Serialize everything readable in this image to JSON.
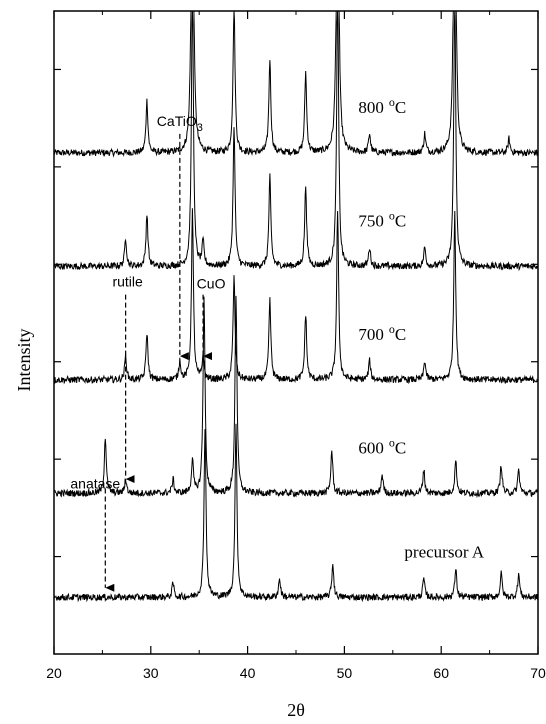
{
  "chart_data": {
    "type": "line",
    "xlabel": "2θ",
    "ylabel": "Intensity",
    "xlim": [
      20,
      70
    ],
    "xticks": [
      "20",
      "30",
      "40",
      "50",
      "60",
      "70"
    ],
    "series": [
      {
        "name": "800",
        "label_sup": "o",
        "label_unit": "C",
        "baseline": 5.3,
        "peaks": [
          {
            "x": 29.6,
            "h": 0.55
          },
          {
            "x": 34.3,
            "h": 4.6
          },
          {
            "x": 38.6,
            "h": 1.6
          },
          {
            "x": 42.3,
            "h": 1.0
          },
          {
            "x": 46.0,
            "h": 0.85
          },
          {
            "x": 49.3,
            "h": 4.6
          },
          {
            "x": 52.6,
            "h": 0.2
          },
          {
            "x": 58.3,
            "h": 0.2
          },
          {
            "x": 61.4,
            "h": 4.6
          },
          {
            "x": 67.0,
            "h": 0.15
          }
        ]
      },
      {
        "name": "750",
        "label_sup": "o",
        "label_unit": "C",
        "baseline": 4.1,
        "peaks": [
          {
            "x": 27.4,
            "h": 0.3
          },
          {
            "x": 29.6,
            "h": 0.55
          },
          {
            "x": 34.3,
            "h": 3.0
          },
          {
            "x": 35.4,
            "h": 0.25
          },
          {
            "x": 38.6,
            "h": 1.5
          },
          {
            "x": 42.3,
            "h": 0.95
          },
          {
            "x": 46.0,
            "h": 0.85
          },
          {
            "x": 49.3,
            "h": 3.0
          },
          {
            "x": 52.6,
            "h": 0.2
          },
          {
            "x": 58.3,
            "h": 0.2
          },
          {
            "x": 61.4,
            "h": 3.0
          }
        ]
      },
      {
        "name": "700",
        "label_sup": "o",
        "label_unit": "C",
        "baseline": 2.9,
        "peaks": [
          {
            "x": 27.4,
            "h": 0.25
          },
          {
            "x": 29.6,
            "h": 0.5
          },
          {
            "x": 33.0,
            "h": 0.2
          },
          {
            "x": 34.3,
            "h": 1.8
          },
          {
            "x": 35.4,
            "h": 0.25
          },
          {
            "x": 38.6,
            "h": 1.1
          },
          {
            "x": 42.3,
            "h": 0.85
          },
          {
            "x": 46.0,
            "h": 0.7
          },
          {
            "x": 49.3,
            "h": 1.8
          },
          {
            "x": 52.6,
            "h": 0.2
          },
          {
            "x": 58.3,
            "h": 0.2
          },
          {
            "x": 61.4,
            "h": 1.8
          }
        ]
      },
      {
        "name": "600",
        "label_sup": "o",
        "label_unit": "C",
        "baseline": 1.7,
        "peaks": [
          {
            "x": 25.3,
            "h": 0.6
          },
          {
            "x": 27.4,
            "h": 0.15
          },
          {
            "x": 32.3,
            "h": 0.15
          },
          {
            "x": 34.3,
            "h": 0.35
          },
          {
            "x": 35.5,
            "h": 2.1
          },
          {
            "x": 38.8,
            "h": 2.1
          },
          {
            "x": 48.7,
            "h": 0.45
          },
          {
            "x": 53.9,
            "h": 0.2
          },
          {
            "x": 58.2,
            "h": 0.25
          },
          {
            "x": 61.5,
            "h": 0.35
          },
          {
            "x": 66.2,
            "h": 0.3
          },
          {
            "x": 68.0,
            "h": 0.25
          }
        ]
      },
      {
        "name": "precursor A",
        "label_sup": "",
        "label_unit": "",
        "baseline": 0.6,
        "peaks": [
          {
            "x": 32.3,
            "h": 0.15
          },
          {
            "x": 35.6,
            "h": 1.8
          },
          {
            "x": 38.8,
            "h": 1.8
          },
          {
            "x": 43.3,
            "h": 0.2
          },
          {
            "x": 48.8,
            "h": 0.35
          },
          {
            "x": 58.2,
            "h": 0.2
          },
          {
            "x": 61.5,
            "h": 0.3
          },
          {
            "x": 66.2,
            "h": 0.25
          },
          {
            "x": 68.0,
            "h": 0.25
          }
        ]
      }
    ],
    "annotations": [
      {
        "text": "CaTiO",
        "sub": "3",
        "arrow_x": 33.0,
        "arrow_from": 5.5,
        "arrow_to": 3.15
      },
      {
        "text": "rutile",
        "sub": "",
        "arrow_x": 27.4,
        "arrow_from": 3.8,
        "arrow_to": 1.85
      },
      {
        "text": "CuO",
        "sub": "",
        "arrow_x": 35.4,
        "arrow_from": 3.8,
        "arrow_to": 3.15
      },
      {
        "text": "anatase",
        "sub": "",
        "arrow_x": 25.3,
        "arrow_from": 1.75,
        "arrow_to": 0.7
      }
    ]
  }
}
